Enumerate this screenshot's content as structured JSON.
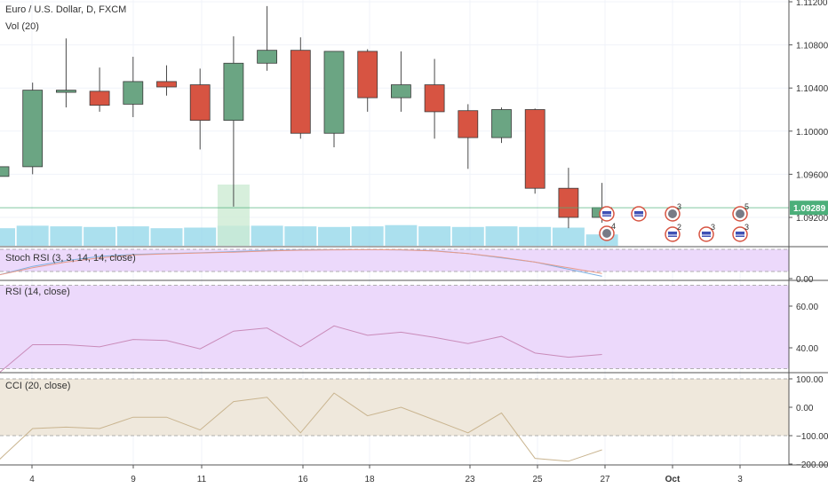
{
  "header": {
    "title": "Euro / U.S. Dollar, D, FXCM",
    "volume_label": "Vol (20)"
  },
  "panes": {
    "stoch_label": "Stoch RSI (3, 3, 14, 14, close)",
    "rsi_label": "RSI (14, close)",
    "cci_label": "CCI (20, close)"
  },
  "colors": {
    "up": "#6ba583",
    "down": "#d75442",
    "volume": "#8fd6e8",
    "rsi_band": "#ecd9fb",
    "cci_band": "#efe8dc",
    "price_tag": "#4caf7a"
  },
  "x_axis": {
    "ticks": [
      "4",
      "9",
      "11",
      "16",
      "18",
      "23",
      "25",
      "27",
      "Oct",
      "3"
    ]
  },
  "price_axis": {
    "ticks": [
      "1.11200",
      "1.10800",
      "1.10400",
      "1.10000",
      "1.09600",
      "1.09200"
    ],
    "last_price": "1.09289"
  },
  "stoch_axis": {
    "ticks": [
      "0.00"
    ]
  },
  "rsi_axis": {
    "ticks": [
      "60.00",
      "40.00"
    ]
  },
  "cci_axis": {
    "ticks": [
      "100.00",
      "0.00",
      "−100.00",
      "−200.00"
    ]
  },
  "events": [
    {
      "icon": "earnings-icon",
      "count": "4"
    },
    {
      "icon": "flag-icon",
      "count": ""
    },
    {
      "icon": "flag-icon",
      "count": ""
    },
    {
      "icon": "earnings-icon",
      "count": "3"
    },
    {
      "icon": "flag-icon",
      "count": "2"
    },
    {
      "icon": "flag-icon",
      "count": "3"
    },
    {
      "icon": "earnings-icon",
      "count": "5"
    },
    {
      "icon": "flag-icon",
      "count": "3"
    }
  ],
  "chart_data": {
    "type": "candlestick",
    "title": "Euro / U.S. Dollar, D, FXCM",
    "candles": [
      {
        "o": 1.0958,
        "h": 1.0975,
        "l": 1.0945,
        "c": 1.0967
      },
      {
        "o": 1.0967,
        "h": 1.1045,
        "l": 1.096,
        "c": 1.1038
      },
      {
        "o": 1.1036,
        "h": 1.1086,
        "l": 1.1022,
        "c": 1.1038
      },
      {
        "o": 1.1037,
        "h": 1.1059,
        "l": 1.1018,
        "c": 1.1024
      },
      {
        "o": 1.1025,
        "h": 1.1069,
        "l": 1.1013,
        "c": 1.1046
      },
      {
        "o": 1.1046,
        "h": 1.1061,
        "l": 1.1033,
        "c": 1.1041
      },
      {
        "o": 1.1043,
        "h": 1.1058,
        "l": 1.0983,
        "c": 1.101
      },
      {
        "o": 1.101,
        "h": 1.1088,
        "l": 1.093,
        "c": 1.1063
      },
      {
        "o": 1.1063,
        "h": 1.1116,
        "l": 1.1056,
        "c": 1.1075
      },
      {
        "o": 1.1075,
        "h": 1.1087,
        "l": 1.0993,
        "c": 1.0998
      },
      {
        "o": 1.0998,
        "h": 1.1074,
        "l": 1.0985,
        "c": 1.1074
      },
      {
        "o": 1.1074,
        "h": 1.1076,
        "l": 1.1018,
        "c": 1.1031
      },
      {
        "o": 1.1031,
        "h": 1.1074,
        "l": 1.1018,
        "c": 1.1043
      },
      {
        "o": 1.1043,
        "h": 1.1067,
        "l": 1.0993,
        "c": 1.1018
      },
      {
        "o": 1.1019,
        "h": 1.1025,
        "l": 1.0965,
        "c": 1.0994
      },
      {
        "o": 1.0994,
        "h": 1.1022,
        "l": 1.0989,
        "c": 1.102
      },
      {
        "o": 1.102,
        "h": 1.1021,
        "l": 1.0942,
        "c": 1.0947
      },
      {
        "o": 1.0947,
        "h": 1.0966,
        "l": 1.091,
        "c": 1.092
      },
      {
        "o": 1.092,
        "h": 1.0952,
        "l": 1.0915,
        "c": 1.0929
      }
    ],
    "volume_highlight_index": 7,
    "stoch_rsi": {
      "k": [
        0.1,
        0.4,
        0.6,
        0.75,
        0.82,
        0.85,
        0.88,
        0.92,
        0.96,
        0.98,
        0.99,
        0.99,
        0.98,
        0.95,
        0.85,
        0.7,
        0.55,
        0.3,
        0.05
      ],
      "d": [
        0.1,
        0.35,
        0.55,
        0.7,
        0.8,
        0.84,
        0.87,
        0.9,
        0.94,
        0.97,
        0.98,
        0.99,
        0.98,
        0.94,
        0.85,
        0.72,
        0.55,
        0.35,
        0.15
      ]
    },
    "rsi": [
      28,
      41.5,
      41.5,
      40.5,
      44,
      43.5,
      39.5,
      48,
      49.5,
      40.5,
      50.5,
      46,
      47.5,
      45,
      42,
      45.5,
      37.5,
      35.5,
      36.8
    ],
    "rsi_band": [
      30,
      70
    ],
    "cci": [
      -185,
      -75,
      -70,
      -75,
      -35,
      -35,
      -80,
      20,
      35,
      -90,
      50,
      -30,
      0,
      -45,
      -90,
      -20,
      -180,
      -190,
      -150
    ],
    "cci_band": [
      -100,
      100
    ]
  }
}
